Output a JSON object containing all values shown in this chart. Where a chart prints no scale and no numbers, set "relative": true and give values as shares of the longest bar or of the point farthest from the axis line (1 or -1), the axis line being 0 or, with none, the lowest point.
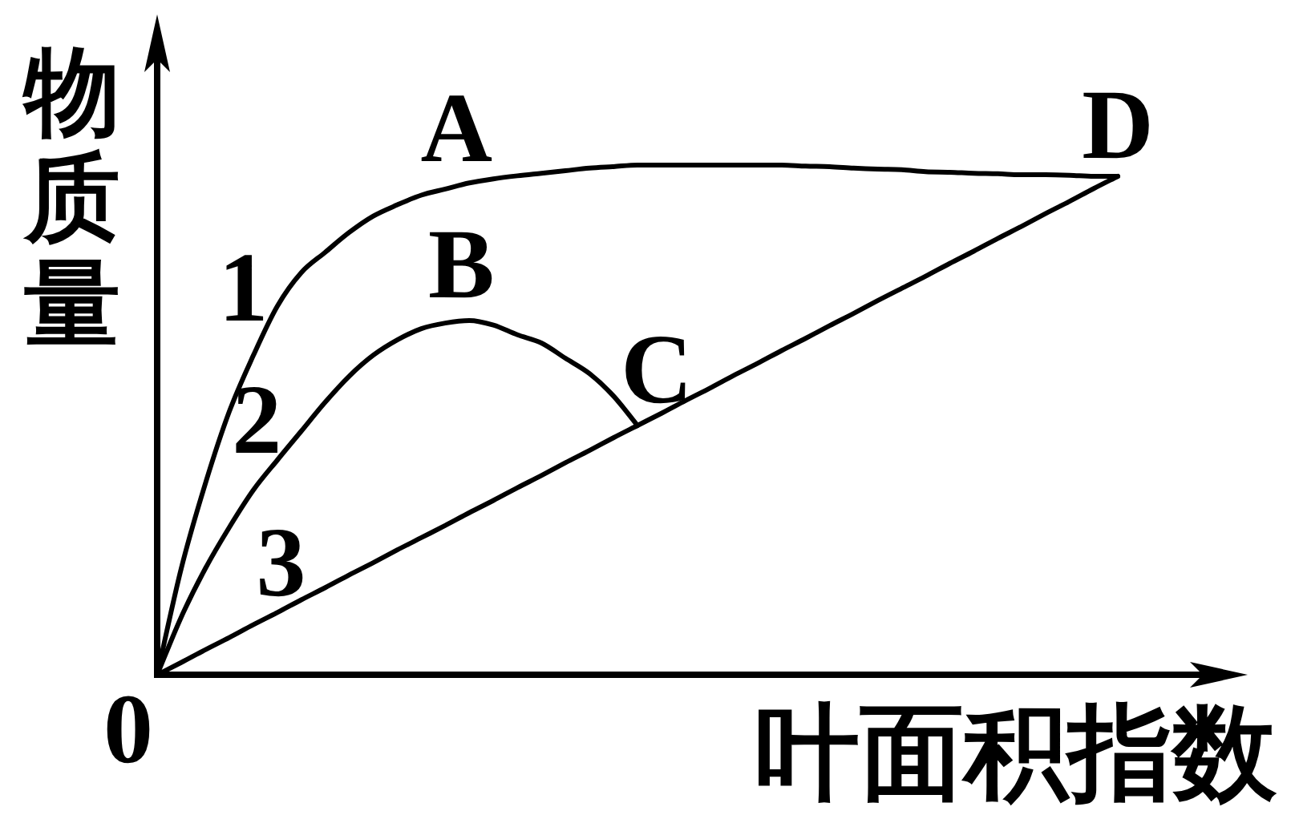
{
  "chart_data": {
    "type": "line",
    "xlabel": "叶面积指数",
    "ylabel": "物质量",
    "relative": true,
    "line_style": "solid",
    "categories": [
      null,
      null,
      null,
      null,
      null,
      null,
      null,
      null,
      null,
      null,
      null,
      null,
      null,
      null,
      null,
      null,
      null,
      null,
      null,
      null,
      null,
      null,
      null,
      null,
      null,
      null,
      null,
      null,
      null,
      null,
      null,
      null,
      null,
      null,
      null,
      null,
      null,
      null,
      null,
      null,
      null
    ],
    "series": [
      {
        "name": "1",
        "color": "#000000",
        "values": [
          0,
          0.208,
          0.374,
          0.516,
          0.626,
          0.723,
          0.789,
          0.829,
          0.868,
          0.9,
          0.922,
          0.941,
          0.953,
          0.965,
          0.973,
          0.979,
          0.984,
          0.989,
          0.994,
          0.997,
          1.0,
          1.0,
          1.0,
          1.0,
          1.0,
          1.0,
          1.0,
          0.998,
          0.997,
          0.994,
          0.992,
          0.991,
          0.987,
          0.986,
          0.984,
          0.983,
          0.981,
          0.981,
          0.98,
          0.978,
          0.978
        ]
      },
      {
        "name": "2",
        "color": "#000000",
        "values": [
          0,
          0.113,
          0.208,
          0.289,
          0.362,
          0.421,
          0.478,
          0.535,
          0.586,
          0.627,
          0.657,
          0.679,
          0.69,
          0.695,
          0.686,
          0.667,
          0.651,
          0.621,
          0.591,
          0.547,
          0.489,
          null,
          null,
          null,
          null,
          null,
          null,
          null,
          null,
          null,
          null,
          null,
          null,
          null,
          null,
          null,
          null,
          null,
          null,
          null,
          null
        ]
      },
      {
        "name": "3",
        "color": "#000000",
        "values": [
          0,
          0.024,
          0.049,
          0.073,
          0.098,
          0.122,
          0.147,
          0.171,
          0.196,
          0.22,
          0.245,
          0.269,
          0.293,
          0.318,
          0.342,
          0.367,
          0.391,
          0.416,
          0.44,
          0.465,
          0.489,
          0.513,
          0.538,
          0.562,
          0.587,
          0.611,
          0.636,
          0.66,
          0.685,
          0.709,
          0.734,
          0.758,
          0.782,
          0.807,
          0.831,
          0.856,
          0.88,
          0.905,
          0.929,
          0.954,
          0.978
        ]
      }
    ],
    "annotations": [
      {
        "text": "A",
        "y": 0.953
      },
      {
        "text": "B",
        "y": 0.695
      },
      {
        "text": "C",
        "y": 0.489
      },
      {
        "text": "D",
        "y": 0.978
      },
      "0"
    ]
  }
}
